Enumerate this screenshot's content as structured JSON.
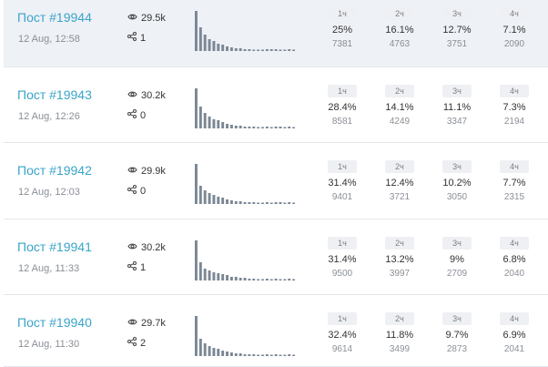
{
  "posts": [
    {
      "title": "Пост #19944",
      "date": "12 Aug, 12:58",
      "views": "29.5k",
      "shares": "1",
      "hours": [
        {
          "label": "1ч",
          "pct": "25%",
          "count": "7381"
        },
        {
          "label": "2ч",
          "pct": "16.1%",
          "count": "4763"
        },
        {
          "label": "3ч",
          "pct": "12.7%",
          "count": "3751"
        },
        {
          "label": "4ч",
          "pct": "7.1%",
          "count": "2090"
        }
      ],
      "spark": [
        44,
        26,
        18,
        13,
        11,
        8,
        7,
        5,
        4,
        3,
        3,
        2,
        2,
        1.5,
        1.5,
        1.5,
        2,
        2,
        2,
        1.5,
        1.5,
        2,
        1.5
      ]
    },
    {
      "title": "Пост #19943",
      "date": "12 Aug, 12:26",
      "views": "30.2k",
      "shares": "0",
      "hours": [
        {
          "label": "1ч",
          "pct": "28.4%",
          "count": "8581"
        },
        {
          "label": "2ч",
          "pct": "14.1%",
          "count": "4249"
        },
        {
          "label": "3ч",
          "pct": "11.1%",
          "count": "3347"
        },
        {
          "label": "4ч",
          "pct": "7.3%",
          "count": "2194"
        }
      ],
      "spark": [
        44,
        24,
        17,
        13,
        10,
        9,
        7,
        5,
        4,
        3,
        3,
        2,
        2,
        2,
        1.5,
        1.5,
        2,
        1.5,
        2,
        2,
        1.5,
        2,
        1.5
      ]
    },
    {
      "title": "Пост #19942",
      "date": "12 Aug, 12:03",
      "views": "29.9k",
      "shares": "0",
      "hours": [
        {
          "label": "1ч",
          "pct": "31.4%",
          "count": "9401"
        },
        {
          "label": "2ч",
          "pct": "12.4%",
          "count": "3721"
        },
        {
          "label": "3ч",
          "pct": "10.2%",
          "count": "3050"
        },
        {
          "label": "4ч",
          "pct": "7.7%",
          "count": "2315"
        }
      ],
      "spark": [
        44,
        20,
        15,
        12,
        10,
        8,
        7,
        5,
        4,
        3,
        3,
        2,
        2,
        2,
        1.5,
        1.5,
        2,
        1.5,
        2,
        2,
        1.5,
        2,
        1.5
      ]
    },
    {
      "title": "Пост #19941",
      "date": "12 Aug, 11:33",
      "views": "30.2k",
      "shares": "1",
      "hours": [
        {
          "label": "1ч",
          "pct": "31.4%",
          "count": "9500"
        },
        {
          "label": "2ч",
          "pct": "13.2%",
          "count": "3997"
        },
        {
          "label": "3ч",
          "pct": "9%",
          "count": "2709"
        },
        {
          "label": "4ч",
          "pct": "6.8%",
          "count": "2040"
        }
      ],
      "spark": [
        44,
        20,
        13,
        11,
        9,
        8,
        7,
        6,
        4,
        4,
        3,
        3,
        2,
        2,
        1.5,
        1.5,
        2,
        1.5,
        2,
        1.5,
        1.5,
        2,
        1.5
      ]
    },
    {
      "title": "Пост #19940",
      "date": "12 Aug, 11:30",
      "views": "29.7k",
      "shares": "2",
      "hours": [
        {
          "label": "1ч",
          "pct": "32.4%",
          "count": "9614"
        },
        {
          "label": "2ч",
          "pct": "11.8%",
          "count": "3499"
        },
        {
          "label": "3ч",
          "pct": "9.7%",
          "count": "2873"
        },
        {
          "label": "4ч",
          "pct": "6.9%",
          "count": "2041"
        }
      ],
      "spark": [
        44,
        19,
        14,
        11,
        9,
        8,
        6,
        5,
        4,
        3,
        3,
        2,
        2,
        2,
        1.5,
        1.5,
        2,
        1.5,
        2,
        1.5,
        1.5,
        2,
        1.5
      ]
    }
  ],
  "icons": {
    "views": "eye-icon",
    "shares": "share-icon"
  },
  "colors": {
    "title": "#3aa4c9",
    "bars": "#7b8794",
    "highlight_row": "#eef1f6"
  }
}
